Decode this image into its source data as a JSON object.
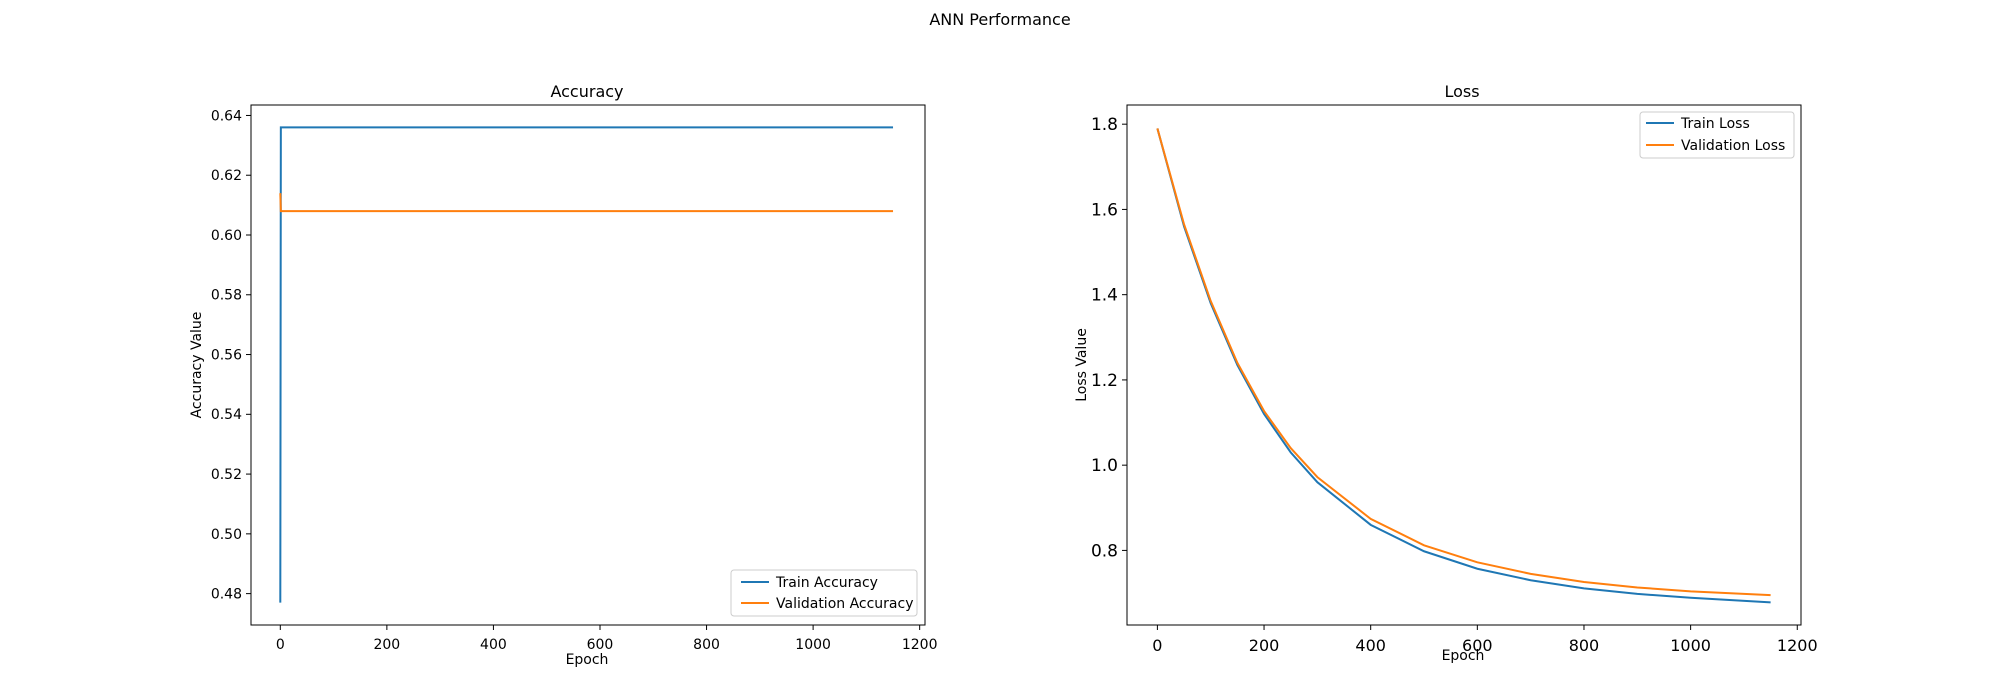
{
  "figure": {
    "title": "ANN Performance"
  },
  "colors": {
    "train": "#1f77b4",
    "validation": "#ff7f0e",
    "axis": "#000000"
  },
  "chart_data": [
    {
      "type": "line",
      "title": "Accuracy",
      "xlabel": "Epoch",
      "ylabel": "Accuracy Value",
      "xlim": [
        -55,
        1210
      ],
      "ylim": [
        0.4695,
        0.6435
      ],
      "xticks": [
        0,
        200,
        400,
        600,
        800,
        1000,
        1200
      ],
      "yticks": [
        0.48,
        0.5,
        0.52,
        0.54,
        0.56,
        0.58,
        0.6,
        0.62,
        0.64
      ],
      "ytick_labels": [
        "0.48",
        "0.50",
        "0.52",
        "0.54",
        "0.56",
        "0.58",
        "0.60",
        "0.62",
        "0.64"
      ],
      "legend_loc": "lower-right",
      "series": [
        {
          "name": "Train Accuracy",
          "color": "#1f77b4",
          "x": [
            0,
            1,
            2,
            1150
          ],
          "y": [
            0.477,
            0.636,
            0.636,
            0.636
          ]
        },
        {
          "name": "Validation Accuracy",
          "color": "#ff7f0e",
          "x": [
            0,
            1,
            2,
            1150
          ],
          "y": [
            0.614,
            0.608,
            0.608,
            0.608
          ]
        }
      ]
    },
    {
      "type": "line",
      "title": "Loss",
      "xlabel": "Epoch",
      "ylabel": "Loss Value",
      "xlim": [
        -57,
        1207
      ],
      "ylim": [
        0.625,
        1.845
      ],
      "xticks": [
        0,
        200,
        400,
        600,
        800,
        1000,
        1200
      ],
      "yticks": [
        0.8,
        1.0,
        1.2,
        1.4,
        1.6,
        1.8
      ],
      "ytick_labels": [
        "0.8",
        "1.0",
        "1.2",
        "1.4",
        "1.6",
        "1.8"
      ],
      "legend_loc": "upper-right",
      "series": [
        {
          "name": "Train Loss",
          "color": "#1f77b4",
          "x": [
            0,
            50,
            100,
            150,
            200,
            250,
            300,
            400,
            500,
            600,
            700,
            800,
            900,
            1000,
            1150
          ],
          "y": [
            1.79,
            1.56,
            1.38,
            1.235,
            1.12,
            1.03,
            0.96,
            0.86,
            0.798,
            0.757,
            0.73,
            0.711,
            0.698,
            0.689,
            0.678
          ]
        },
        {
          "name": "Validation Loss",
          "color": "#ff7f0e",
          "x": [
            0,
            50,
            100,
            150,
            200,
            250,
            300,
            400,
            500,
            600,
            700,
            800,
            900,
            1000,
            1150
          ],
          "y": [
            1.79,
            1.565,
            1.385,
            1.24,
            1.127,
            1.04,
            0.972,
            0.874,
            0.812,
            0.772,
            0.745,
            0.726,
            0.713,
            0.704,
            0.695
          ]
        }
      ]
    }
  ]
}
